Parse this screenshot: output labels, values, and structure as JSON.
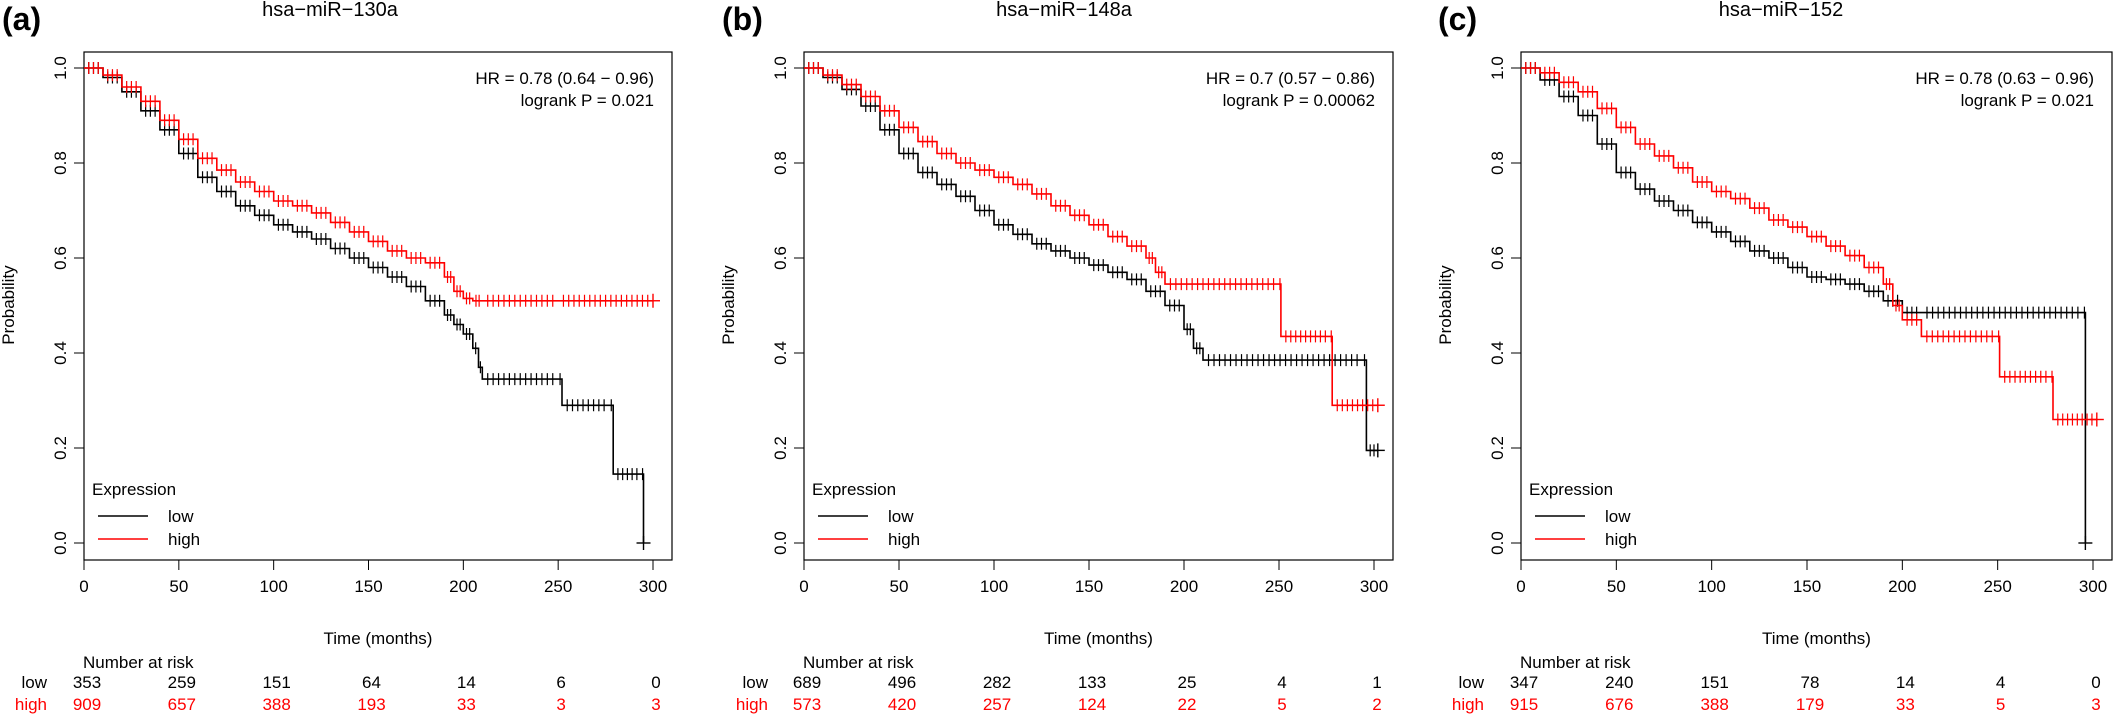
{
  "panels": [
    {
      "label": "(a)",
      "title": "hsa−miR−130a",
      "hr_text": "HR = 0.78 (0.64 − 0.96)",
      "p_text": "logrank P = 0.021",
      "risk": {
        "low": [
          "353",
          "259",
          "151",
          "64",
          "14",
          "6",
          "0"
        ],
        "high": [
          "909",
          "657",
          "388",
          "193",
          "33",
          "3",
          "3"
        ]
      }
    },
    {
      "label": "(b)",
      "title": "hsa−miR−148a",
      "hr_text": "HR = 0.7 (0.57 − 0.86)",
      "p_text": "logrank P = 0.00062",
      "risk": {
        "low": [
          "689",
          "496",
          "282",
          "133",
          "25",
          "4",
          "1"
        ],
        "high": [
          "573",
          "420",
          "257",
          "124",
          "22",
          "5",
          "2"
        ]
      }
    },
    {
      "label": "(c)",
      "title": "hsa−miR−152",
      "hr_text": "HR = 0.78 (0.63 − 0.96)",
      "p_text": "logrank P = 0.021",
      "risk": {
        "low": [
          "347",
          "240",
          "151",
          "78",
          "14",
          "4",
          "0"
        ],
        "high": [
          "915",
          "676",
          "388",
          "179",
          "33",
          "5",
          "3"
        ]
      }
    }
  ],
  "common": {
    "xlabel": "Time (months)",
    "ylabel": "Probability",
    "legend_title": "Expression",
    "legend_low": "low",
    "legend_high": "high",
    "risk_header": "Number at risk",
    "risk_low_label": "low",
    "risk_high_label": "high"
  },
  "chart_data": [
    {
      "type": "line",
      "title": "hsa−miR−130a",
      "xlabel": "Time (months)",
      "ylabel": "Probability",
      "xlim": [
        0,
        300
      ],
      "ylim": [
        0,
        1
      ],
      "xticks": [
        0,
        50,
        100,
        150,
        200,
        250,
        300
      ],
      "yticks": [
        "0.0",
        "0.2",
        "0.4",
        "0.6",
        "0.8",
        "1.0"
      ],
      "legend": {
        "title": "Expression",
        "placement": "bottom-left"
      },
      "series": [
        {
          "name": "low",
          "color": "#000000",
          "x": [
            0,
            10,
            20,
            30,
            40,
            50,
            60,
            70,
            80,
            90,
            100,
            110,
            120,
            130,
            140,
            150,
            160,
            170,
            180,
            190,
            195,
            200,
            205,
            208,
            210,
            250,
            252,
            277,
            279,
            294,
            295
          ],
          "y": [
            1.0,
            0.98,
            0.95,
            0.91,
            0.87,
            0.82,
            0.77,
            0.74,
            0.71,
            0.69,
            0.67,
            0.655,
            0.64,
            0.62,
            0.6,
            0.58,
            0.56,
            0.54,
            0.51,
            0.48,
            0.46,
            0.44,
            0.41,
            0.37,
            0.345,
            0.345,
            0.29,
            0.29,
            0.145,
            0.145,
            0.0
          ]
        },
        {
          "name": "high",
          "color": "#ff0000",
          "x": [
            0,
            10,
            20,
            30,
            40,
            50,
            60,
            70,
            80,
            90,
            100,
            110,
            120,
            130,
            140,
            150,
            160,
            170,
            180,
            190,
            195,
            200,
            205,
            210,
            250,
            300
          ],
          "y": [
            1.0,
            0.985,
            0.96,
            0.93,
            0.89,
            0.85,
            0.81,
            0.785,
            0.76,
            0.74,
            0.72,
            0.71,
            0.695,
            0.675,
            0.655,
            0.635,
            0.615,
            0.6,
            0.59,
            0.56,
            0.53,
            0.515,
            0.51,
            0.51,
            0.51,
            0.51
          ]
        }
      ],
      "annotations": [
        "HR = 0.78 (0.64 − 0.96)",
        "logrank P = 0.021"
      ]
    },
    {
      "type": "line",
      "title": "hsa−miR−148a",
      "xlabel": "Time (months)",
      "ylabel": "Probability",
      "xlim": [
        0,
        300
      ],
      "ylim": [
        0,
        1
      ],
      "xticks": [
        0,
        50,
        100,
        150,
        200,
        250,
        300
      ],
      "yticks": [
        "0.0",
        "0.2",
        "0.4",
        "0.6",
        "0.8",
        "1.0"
      ],
      "legend": {
        "title": "Expression",
        "placement": "bottom-left"
      },
      "series": [
        {
          "name": "low",
          "color": "#000000",
          "x": [
            0,
            10,
            20,
            30,
            40,
            50,
            60,
            70,
            80,
            90,
            100,
            110,
            120,
            130,
            140,
            150,
            160,
            170,
            180,
            190,
            200,
            205,
            210,
            294,
            296,
            302
          ],
          "y": [
            1.0,
            0.98,
            0.955,
            0.92,
            0.87,
            0.82,
            0.78,
            0.755,
            0.73,
            0.7,
            0.67,
            0.65,
            0.63,
            0.615,
            0.6,
            0.585,
            0.57,
            0.555,
            0.53,
            0.5,
            0.45,
            0.41,
            0.385,
            0.385,
            0.195,
            0.195
          ]
        },
        {
          "name": "high",
          "color": "#ff0000",
          "x": [
            0,
            10,
            20,
            30,
            40,
            50,
            60,
            70,
            80,
            90,
            100,
            110,
            120,
            130,
            140,
            150,
            160,
            170,
            180,
            185,
            190,
            250,
            251,
            277,
            278,
            302
          ],
          "y": [
            1.0,
            0.985,
            0.965,
            0.94,
            0.91,
            0.875,
            0.845,
            0.82,
            0.8,
            0.785,
            0.77,
            0.755,
            0.735,
            0.71,
            0.69,
            0.67,
            0.645,
            0.625,
            0.6,
            0.57,
            0.545,
            0.545,
            0.435,
            0.435,
            0.29,
            0.29
          ]
        }
      ],
      "annotations": [
        "HR = 0.7 (0.57 − 0.86)",
        "logrank P = 0.00062"
      ]
    },
    {
      "type": "line",
      "title": "hsa−miR−152",
      "xlabel": "Time (months)",
      "ylabel": "Probability",
      "xlim": [
        0,
        300
      ],
      "ylim": [
        0,
        1
      ],
      "xticks": [
        0,
        50,
        100,
        150,
        200,
        250,
        300
      ],
      "yticks": [
        "0.0",
        "0.2",
        "0.4",
        "0.6",
        "0.8",
        "1.0"
      ],
      "legend": {
        "title": "Expression",
        "placement": "bottom-left"
      },
      "series": [
        {
          "name": "low",
          "color": "#000000",
          "x": [
            0,
            10,
            20,
            30,
            40,
            50,
            60,
            70,
            80,
            90,
            100,
            110,
            120,
            130,
            140,
            150,
            160,
            170,
            180,
            190,
            200,
            210,
            295,
            296
          ],
          "y": [
            1.0,
            0.975,
            0.94,
            0.9,
            0.84,
            0.78,
            0.745,
            0.72,
            0.7,
            0.675,
            0.655,
            0.635,
            0.615,
            0.6,
            0.58,
            0.56,
            0.555,
            0.545,
            0.53,
            0.51,
            0.485,
            0.485,
            0.485,
            0.0
          ]
        },
        {
          "name": "high",
          "color": "#ff0000",
          "x": [
            0,
            10,
            20,
            30,
            40,
            50,
            60,
            70,
            80,
            90,
            100,
            110,
            120,
            130,
            140,
            150,
            160,
            170,
            180,
            190,
            195,
            200,
            210,
            250,
            251,
            278,
            279,
            302
          ],
          "y": [
            1.0,
            0.99,
            0.97,
            0.95,
            0.915,
            0.875,
            0.84,
            0.815,
            0.79,
            0.76,
            0.74,
            0.725,
            0.705,
            0.68,
            0.665,
            0.645,
            0.625,
            0.605,
            0.58,
            0.545,
            0.5,
            0.47,
            0.435,
            0.435,
            0.35,
            0.35,
            0.26,
            0.26
          ]
        }
      ],
      "annotations": [
        "HR = 0.78 (0.63 − 0.96)",
        "logrank P = 0.021"
      ]
    }
  ]
}
